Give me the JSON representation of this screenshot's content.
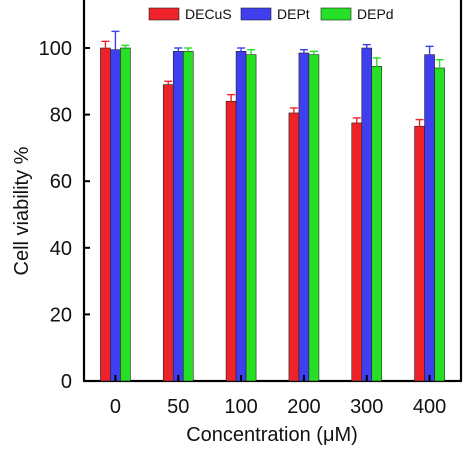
{
  "chart_data": {
    "type": "bar",
    "xlabel": "Concentration (μM)",
    "ylabel": "Cell viability %",
    "categories": [
      "0",
      "50",
      "100",
      "200",
      "300",
      "400"
    ],
    "ylim": [
      0,
      110
    ],
    "yticks": [
      "0",
      "20",
      "40",
      "60",
      "80",
      "100"
    ],
    "legend_placement": "top",
    "series": [
      {
        "name": "DECuS",
        "color": "#ee2229",
        "values": [
          100,
          89,
          84,
          80.5,
          77.5,
          76.5
        ],
        "errors": [
          2,
          1,
          2,
          1.5,
          1.5,
          2
        ]
      },
      {
        "name": "DEPt",
        "color": "#3f3ff0",
        "values": [
          99.5,
          99,
          99,
          98.5,
          100,
          98
        ],
        "errors": [
          5.5,
          1,
          1,
          1,
          1,
          2.5
        ]
      },
      {
        "name": "DEPd",
        "color": "#26e026",
        "values": [
          100,
          99,
          98,
          98,
          94.5,
          94
        ],
        "errors": [
          0.8,
          1,
          1.5,
          1,
          2.5,
          2.5
        ]
      }
    ]
  }
}
